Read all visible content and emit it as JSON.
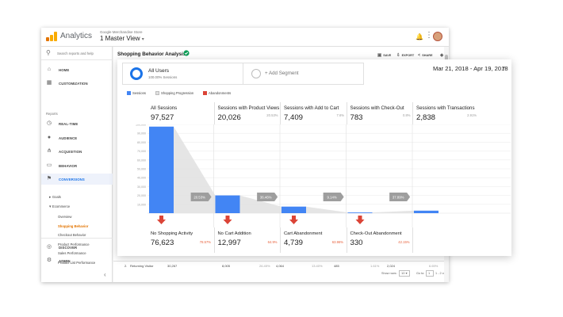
{
  "app": {
    "name": "Analytics",
    "account": "Google Merchandise Store",
    "view": "1 Master View",
    "caret": "▾",
    "icons": {
      "logo": "analytics-logo-icon",
      "bell": "bell-icon",
      "more": "more-vert-icon",
      "avatar": "avatar"
    }
  },
  "sidebar": {
    "search_placeholder": "Search reports and help",
    "nav_top": [
      {
        "label": "HOME",
        "icon": "⌂",
        "name": "home"
      },
      {
        "label": "CUSTOMIZATION",
        "icon": "▦",
        "name": "customization"
      }
    ],
    "reports_label": "Reports",
    "nav_reports": [
      {
        "label": "REAL-TIME",
        "icon": "◷",
        "name": "real-time"
      },
      {
        "label": "AUDIENCE",
        "icon": "●",
        "name": "audience"
      },
      {
        "label": "ACQUISITION",
        "icon": "⋔",
        "name": "acquisition"
      },
      {
        "label": "BEHAVIOR",
        "icon": "▭",
        "name": "behavior"
      },
      {
        "label": "CONVERSIONS",
        "icon": "⚑",
        "name": "conversions"
      }
    ],
    "conversions_sub": [
      {
        "label": "Goals",
        "bullet": "▸"
      },
      {
        "label": "Ecommerce",
        "bullet": "▾"
      }
    ],
    "ecommerce_items": [
      "Overview",
      "Shopping Behavior",
      "Checkout Behavior",
      "Product Performance",
      "Sales Performance",
      "Product List Performance"
    ],
    "current_item": "Shopping Behavior",
    "nav_bottom": [
      {
        "label": "DISCOVER",
        "icon": "◎",
        "name": "discover"
      },
      {
        "label": "ADMIN",
        "icon": "⚙",
        "name": "admin"
      }
    ],
    "collapse_icon": "‹"
  },
  "report": {
    "title": "Shopping Behavior Analysis",
    "actions": [
      {
        "label": "SAVE",
        "icon": "▣",
        "name": "save"
      },
      {
        "label": "EXPORT",
        "icon": "⇩",
        "name": "export"
      },
      {
        "label": "SHARE",
        "icon": "<",
        "name": "share"
      },
      {
        "label": "INTELLIGENCE",
        "icon": "◈",
        "name": "intelligence"
      }
    ],
    "table_row": {
      "index": "2.",
      "label": "Returning Visitor",
      "cells": [
        "30,267",
        "8,005",
        "26.45%",
        "4,064",
        "13.40%",
        "485",
        "1.61%",
        "2,024",
        "6.69%"
      ]
    },
    "pager": {
      "show_rows_label": "Show rows:",
      "rows": "10",
      "goto_label": "Go to:",
      "goto_value": "1",
      "range": "1 - 2 of 2",
      "prev": "‹",
      "next": "›"
    }
  },
  "segments": {
    "all_users_name": "All Users",
    "all_users_sub": "100.00% Sessions",
    "add_segment": "+ Add Segment"
  },
  "date_range": {
    "label": "Mar 21, 2018 - Apr 19, 2018",
    "caret": "▾"
  },
  "legend": [
    {
      "label": "Sessions",
      "color": "#4285f4"
    },
    {
      "label": "Shopping Progression",
      "color": "#e0e0e0"
    },
    {
      "label": "Abandonments",
      "color": "#db4437"
    }
  ],
  "chart_data": {
    "type": "bar",
    "categories": [
      "All Sessions",
      "Sessions with Product Views",
      "Sessions with Add to Cart",
      "Sessions with Check-Out",
      "Sessions with Transactions"
    ],
    "values": [
      97527,
      20026,
      7409,
      783,
      2838
    ],
    "header_percents": [
      "",
      "20.53%",
      "7.6%",
      "0.8%",
      "2.91%"
    ],
    "progression_percents": [
      "20.53%",
      "36.46%",
      "9.14%",
      "37.89%"
    ],
    "abandonments": [
      {
        "label": "No Shopping Activity",
        "value": "76,623",
        "percent": "78.57%"
      },
      {
        "label": "No Cart Addition",
        "value": "12,997",
        "percent": "64.9%"
      },
      {
        "label": "Cart Abandonment",
        "value": "4,739",
        "percent": "63.96%"
      },
      {
        "label": "Check-Out Abandonment",
        "value": "330",
        "percent": "42.15%"
      }
    ],
    "y_ticks": [
      "100,000",
      "90,000",
      "80,000",
      "70,000",
      "60,000",
      "50,000",
      "40,000",
      "30,000",
      "20,000",
      "10,000"
    ],
    "ylim": [
      0,
      100000
    ],
    "grid": true,
    "colors": {
      "bar": "#4285f4",
      "progression": "#e0e0e0",
      "pct_tag": "#9e9e9e",
      "abandon": "#db4437"
    }
  }
}
